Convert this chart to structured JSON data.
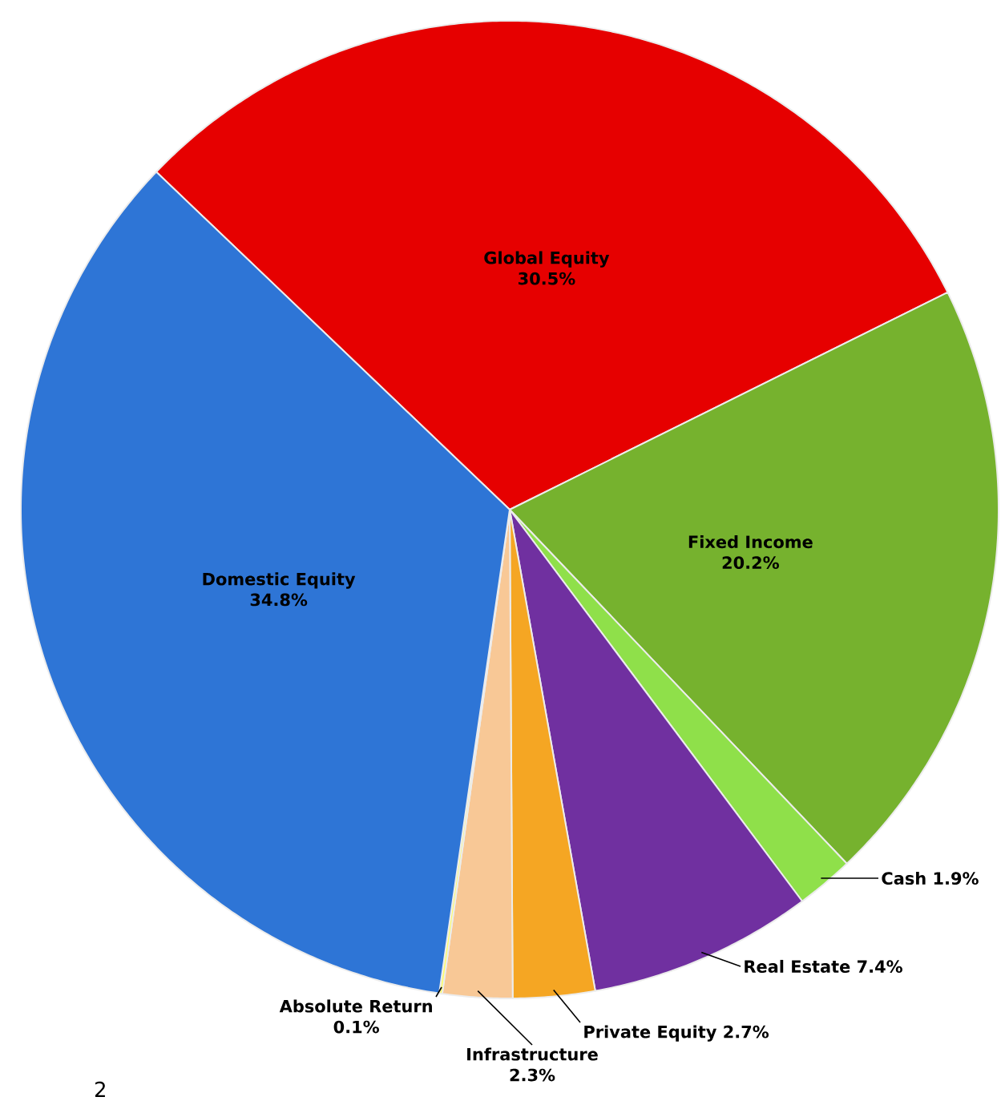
{
  "chart_data": {
    "type": "pie",
    "categories": [
      "Global Equity",
      "Fixed Income",
      "Cash",
      "Real Estate",
      "Private Equity",
      "Infrastructure",
      "Absolute Return",
      "Domestic Equity"
    ],
    "values": [
      30.5,
      20.2,
      1.9,
      7.4,
      2.7,
      2.3,
      0.1,
      34.8
    ],
    "value_labels": [
      "30.5%",
      "20.2%",
      "1.9%",
      "7.4%",
      "2.7%",
      "2.3%",
      "0.1%",
      "34.8%"
    ],
    "colors": [
      "#e60000",
      "#76b22e",
      "#8fe04a",
      "#7030a0",
      "#f5a623",
      "#f8c896",
      "#ffff66",
      "#2e75d6"
    ],
    "annotations": [
      "2"
    ]
  }
}
